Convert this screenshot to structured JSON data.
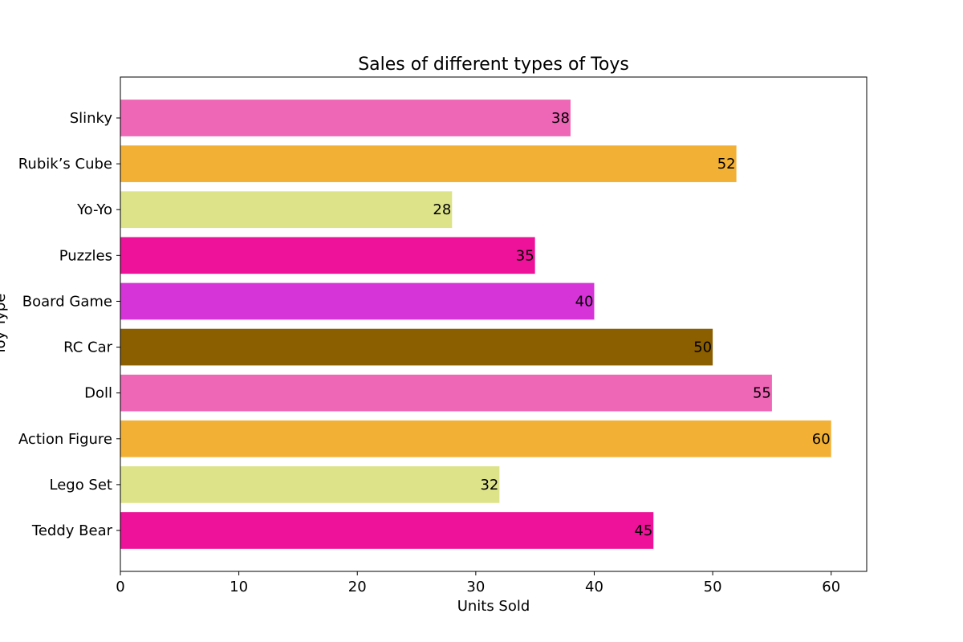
{
  "chart_data": {
    "type": "bar",
    "orientation": "horizontal",
    "title": "Sales of different types of Toys",
    "xlabel": "Units Sold",
    "ylabel": "Toy Type",
    "categories": [
      "Teddy Bear",
      "Lego Set",
      "Action Figure",
      "Doll",
      "RC Car",
      "Board Game",
      "Puzzles",
      "Yo-Yo",
      "Rubik’s Cube",
      "Slinky"
    ],
    "values": [
      45,
      32,
      60,
      55,
      50,
      40,
      35,
      28,
      52,
      38
    ],
    "colors": [
      "#ee1199",
      "#dde388",
      "#f2b134",
      "#ee66b6",
      "#8b5e00",
      "#d633d9",
      "#ee1199",
      "#dde388",
      "#f2b134",
      "#ee66b6"
    ],
    "xlim": [
      0,
      63
    ],
    "xticks": [
      0,
      10,
      20,
      30,
      40,
      50,
      60
    ],
    "grid": false,
    "legend": "none"
  }
}
